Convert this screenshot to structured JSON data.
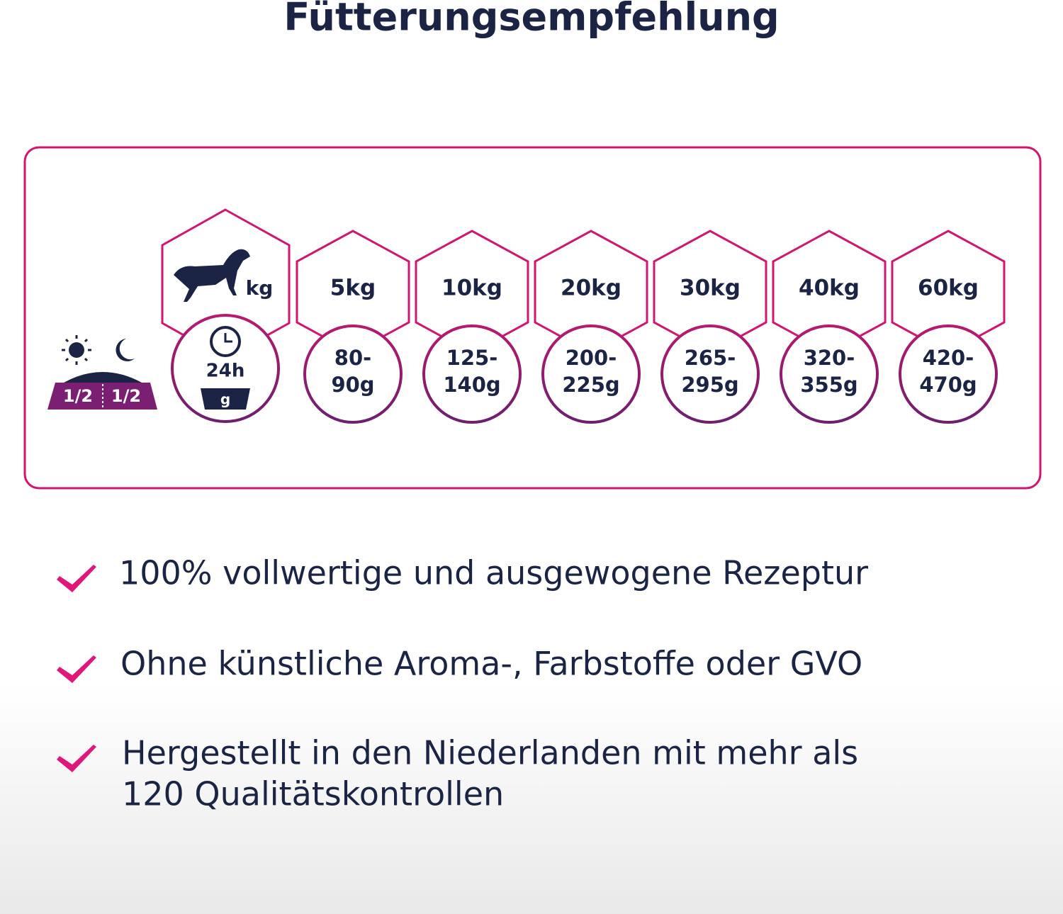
{
  "header": {
    "title": "Fütterungsempfehlung"
  },
  "feeding": {
    "split_labels": [
      "1/2",
      "1/2"
    ],
    "weight_header": "kg",
    "time_header": "24h",
    "amount_header": "g",
    "columns": [
      {
        "weight": "5kg",
        "amount": [
          "80-",
          "90g"
        ]
      },
      {
        "weight": "10kg",
        "amount": [
          "125-",
          "140g"
        ]
      },
      {
        "weight": "20kg",
        "amount": [
          "200-",
          "225g"
        ]
      },
      {
        "weight": "30kg",
        "amount": [
          "265-",
          "295g"
        ]
      },
      {
        "weight": "40kg",
        "amount": [
          "320-",
          "355g"
        ]
      },
      {
        "weight": "60kg",
        "amount": [
          "420-",
          "470g"
        ]
      }
    ]
  },
  "benefits": [
    [
      "100% vollwertige und ausgewogene Rezeptur"
    ],
    [
      "Ohne künstliche Aroma-, Farbstoffe oder GVO"
    ],
    [
      "Hergestellt in den Niederlanden mit mehr als",
      "120 Qualitätskontrollen"
    ]
  ]
}
